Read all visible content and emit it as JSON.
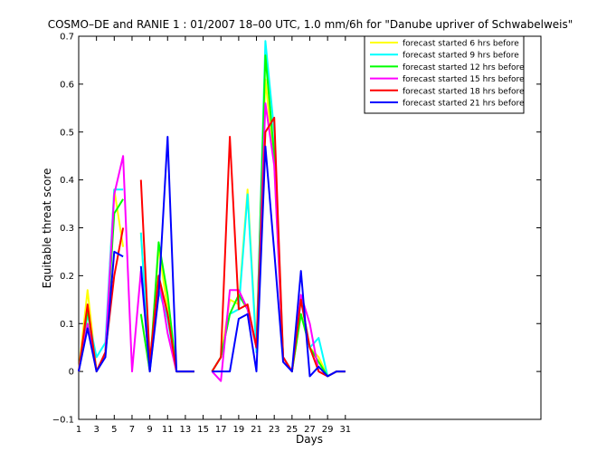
{
  "chart_data": {
    "type": "line",
    "title": "COSMO–DE and RANIE 1 : 01/2007 18–00 UTC, 1.0 mm/6h for \"Danube upriver of Schwabelweis\"",
    "xlabel": "Days",
    "ylabel": "Equitable threat score",
    "xlim": [
      1,
      53
    ],
    "ylim": [
      -0.1,
      0.7
    ],
    "xticks": [
      1,
      3,
      5,
      7,
      9,
      11,
      13,
      15,
      17,
      19,
      21,
      23,
      25,
      27,
      29,
      31
    ],
    "yticks": [
      -0.1,
      0,
      0.1,
      0.2,
      0.3,
      0.4,
      0.5,
      0.6,
      0.7
    ],
    "ytick_labels": [
      "−0.1",
      "0",
      "0.1",
      "0.2",
      "0.3",
      "0.4",
      "0.5",
      "0.6",
      "0.7"
    ],
    "legend_position": "top-right",
    "x": [
      1,
      2,
      3,
      4,
      5,
      6,
      7,
      8,
      9,
      10,
      11,
      12,
      13,
      14,
      15,
      16,
      17,
      18,
      19,
      20,
      21,
      22,
      23,
      24,
      25,
      26,
      27,
      28,
      29,
      30,
      31
    ],
    "series": [
      {
        "name": "forecast started 6 hrs before",
        "color": "#ffff00",
        "values": [
          0,
          0.17,
          0,
          0.04,
          0.38,
          0.26,
          null,
          0.29,
          0,
          0.26,
          0.13,
          0,
          0,
          0,
          null,
          0,
          0.03,
          0.15,
          0.14,
          0.38,
          0.05,
          0.61,
          0.43,
          0.03,
          0,
          0.12,
          0.05,
          0.03,
          -0.01,
          0,
          0
        ]
      },
      {
        "name": "forecast started 9 hrs before",
        "color": "#00ffff",
        "values": [
          0,
          0.12,
          0.03,
          0.06,
          0.38,
          0.38,
          null,
          0.29,
          0,
          0.17,
          0.11,
          0,
          0,
          0,
          null,
          0,
          0.03,
          0.12,
          0.13,
          0.37,
          0.04,
          0.69,
          0.5,
          0.03,
          0,
          0.15,
          0.05,
          0.07,
          -0.01,
          0,
          0
        ]
      },
      {
        "name": "forecast started 12 hrs before",
        "color": "#00ff00",
        "values": [
          0,
          0.13,
          0,
          0.04,
          0.33,
          0.36,
          null,
          0.12,
          0,
          0.27,
          0.16,
          0,
          0,
          0,
          null,
          0,
          0.03,
          0.12,
          0.16,
          0.13,
          0.05,
          0.66,
          0.45,
          0.03,
          0,
          0.12,
          0.05,
          0.02,
          -0.01,
          0,
          0
        ]
      },
      {
        "name": "forecast started 15 hrs before",
        "color": "#ff00ff",
        "values": [
          0,
          0.1,
          0,
          0.04,
          0.37,
          0.45,
          0,
          0.21,
          0,
          0.2,
          0.08,
          0,
          0,
          0,
          null,
          0,
          -0.02,
          0.17,
          0.17,
          0.13,
          0.05,
          0.56,
          0.43,
          0.03,
          0,
          0.16,
          0.1,
          0,
          -0.01,
          0,
          0
        ]
      },
      {
        "name": "forecast started 18 hrs before",
        "color": "#ff0000",
        "values": [
          0,
          0.14,
          0,
          0.04,
          0.2,
          0.3,
          null,
          0.4,
          0.02,
          0.2,
          0.12,
          0,
          0,
          0,
          null,
          0,
          0.03,
          0.49,
          0.13,
          0.14,
          0.05,
          0.5,
          0.53,
          0.03,
          0,
          0.15,
          0.05,
          0,
          -0.01,
          0,
          0
        ]
      },
      {
        "name": "forecast started 21 hrs before",
        "color": "#0000ff",
        "values": [
          0,
          0.09,
          0,
          0.03,
          0.25,
          0.24,
          null,
          0.22,
          0,
          0.16,
          0.49,
          0,
          0,
          0,
          null,
          0,
          0,
          0,
          0.11,
          0.12,
          0,
          0.47,
          0.25,
          0.02,
          0,
          0.21,
          -0.01,
          0.01,
          -0.01,
          0,
          0
        ]
      }
    ]
  }
}
